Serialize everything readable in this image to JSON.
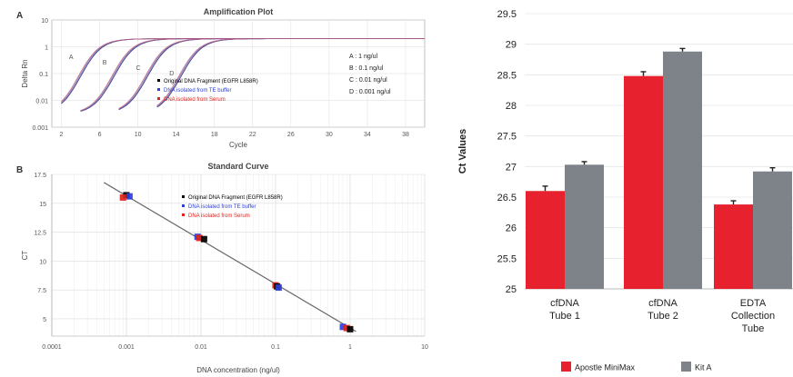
{
  "chart_data": [
    {
      "panel_label": "A",
      "type": "line",
      "title": "Amplification Plot",
      "xlabel": "Cycle",
      "ylabel": "Delta Rn",
      "y_scale": "log",
      "xlim": [
        1,
        40
      ],
      "ylim": [
        0.001,
        10
      ],
      "x_ticks": [
        "2",
        "6",
        "10",
        "14",
        "18",
        "22",
        "26",
        "30",
        "34",
        "38"
      ],
      "y_ticks": [
        "0.001",
        "0.01",
        "0.1",
        "1",
        "10"
      ],
      "grid": true,
      "annotations": [
        "A",
        "B",
        "C",
        "D"
      ],
      "concentration_key": [
        "A : 1 ng/ul",
        "B : 0.1 ng/ul",
        "C : 0.01 ng/ul",
        "D : 0.001 ng/ul"
      ],
      "legend": [
        {
          "name": "Original DNA Fragment (EGFR L858R)",
          "color": "#000000"
        },
        {
          "name": "DNA isolated from TE buffer",
          "color": "#2b3fd8"
        },
        {
          "name": "DNA isolated from Serum",
          "color": "#e0231c"
        }
      ],
      "series": [
        {
          "label": "A",
          "baseline_start_x": 2,
          "threshold_x": 4,
          "plateau": 2
        },
        {
          "label": "B",
          "baseline_start_x": 4,
          "threshold_x": 7.5,
          "plateau": 2
        },
        {
          "label": "C",
          "baseline_start_x": 8,
          "threshold_x": 11,
          "plateau": 2
        },
        {
          "label": "D",
          "baseline_start_x": 12,
          "threshold_x": 14.5,
          "plateau": 2
        }
      ]
    },
    {
      "panel_label": "B",
      "type": "scatter",
      "title": "Standard Curve",
      "xlabel": "DNA concentration (ng/ul)",
      "ylabel": "CT",
      "x_scale": "log",
      "xlim": [
        0.0001,
        10
      ],
      "ylim": [
        3.5,
        17.5
      ],
      "x_ticks": [
        "0.0001",
        "0.001",
        "0.01",
        "0.1",
        "1",
        "10"
      ],
      "y_ticks": [
        "5",
        "7.5",
        "10",
        "12.5",
        "15",
        "17.5"
      ],
      "grid": true,
      "legend": [
        {
          "name": "Original DNA Fragment (EGFR L858R)",
          "color": "#000000"
        },
        {
          "name": "DNA isolated from TE buffer",
          "color": "#2b3fd8"
        },
        {
          "name": "DNA isolated from Serum",
          "color": "#e0231c"
        }
      ],
      "points": [
        {
          "x": 0.001,
          "y": 15.7,
          "group": 0
        },
        {
          "x": 0.0011,
          "y": 15.6,
          "group": 1
        },
        {
          "x": 0.0009,
          "y": 15.5,
          "group": 2
        },
        {
          "x": 0.009,
          "y": 12.1,
          "group": 1
        },
        {
          "x": 0.0095,
          "y": 12.0,
          "group": 2
        },
        {
          "x": 0.011,
          "y": 11.9,
          "group": 0
        },
        {
          "x": 0.1,
          "y": 7.9,
          "group": 2
        },
        {
          "x": 0.105,
          "y": 7.8,
          "group": 0
        },
        {
          "x": 0.11,
          "y": 7.7,
          "group": 1
        },
        {
          "x": 0.8,
          "y": 4.3,
          "group": 1
        },
        {
          "x": 0.9,
          "y": 4.2,
          "group": 2
        },
        {
          "x": 1.0,
          "y": 4.1,
          "group": 0
        }
      ],
      "fit_line": {
        "x": [
          0.0005,
          1.2
        ],
        "y": [
          16.8,
          3.9
        ]
      }
    },
    {
      "type": "bar",
      "ylabel": "Ct Values",
      "ylim": [
        25,
        29.5
      ],
      "y_ticks": [
        "25",
        "25.5",
        "26",
        "26.5",
        "27",
        "27.5",
        "28",
        "28.5",
        "29",
        "29.5"
      ],
      "grid": true,
      "legend_position": "bottom",
      "categories": [
        [
          "cfDNA",
          "Tube 1"
        ],
        [
          "cfDNA",
          "Tube 2"
        ],
        [
          "EDTA",
          "Collection",
          "Tube"
        ]
      ],
      "series": [
        {
          "name": "Apostle MiniMax",
          "color": "#e8212e",
          "values": [
            26.6,
            28.48,
            26.38
          ],
          "errors": [
            0.08,
            0.07,
            0.06
          ]
        },
        {
          "name": "Kit A",
          "color": "#7d8389",
          "values": [
            27.03,
            28.88,
            26.92
          ],
          "errors": [
            0.05,
            0.05,
            0.06
          ]
        }
      ]
    }
  ]
}
